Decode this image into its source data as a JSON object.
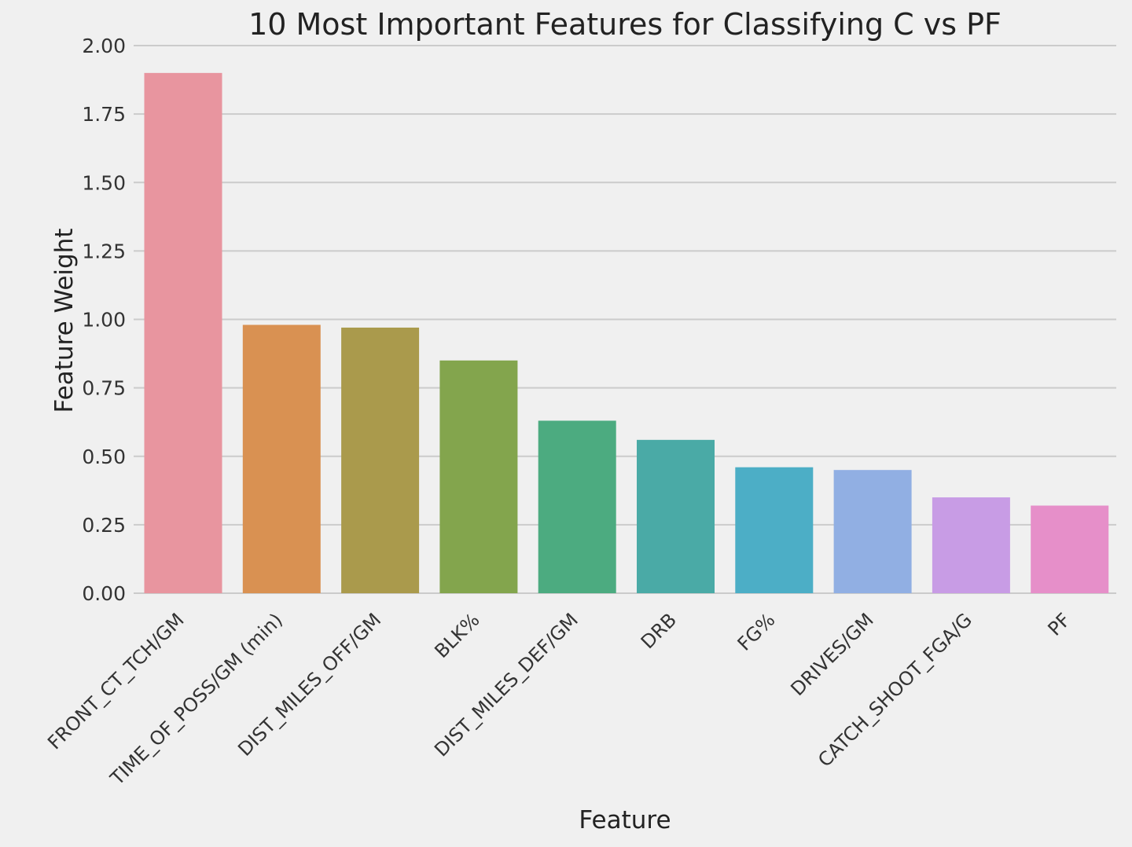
{
  "chart_data": {
    "type": "bar",
    "title": "10 Most Important Features for Classifying C vs PF",
    "xlabel": "Feature",
    "ylabel": "Feature Weight",
    "ylim": [
      0,
      2.0
    ],
    "yticks": [
      "0.00",
      "0.25",
      "0.50",
      "0.75",
      "1.00",
      "1.25",
      "1.50",
      "1.75",
      "2.00"
    ],
    "grid": true,
    "categories": [
      "FRONT_CT_TCH/GM",
      "TIME_OF_POSS/GM (min)",
      "DIST_MILES_OFF/GM",
      "BLK%",
      "DIST_MILES_DEF/GM",
      "DRB",
      "FG%",
      "DRIVES/GM",
      "CATCH_SHOOT_FGA/G",
      "PF"
    ],
    "values": [
      1.9,
      0.98,
      0.97,
      0.85,
      0.63,
      0.56,
      0.46,
      0.45,
      0.35,
      0.32
    ],
    "colors": [
      "#e8959f",
      "#d99152",
      "#aa9a4c",
      "#83a54d",
      "#4cab80",
      "#4aaaa6",
      "#4caec6",
      "#91afe3",
      "#c89ce5",
      "#e68fc9"
    ]
  }
}
